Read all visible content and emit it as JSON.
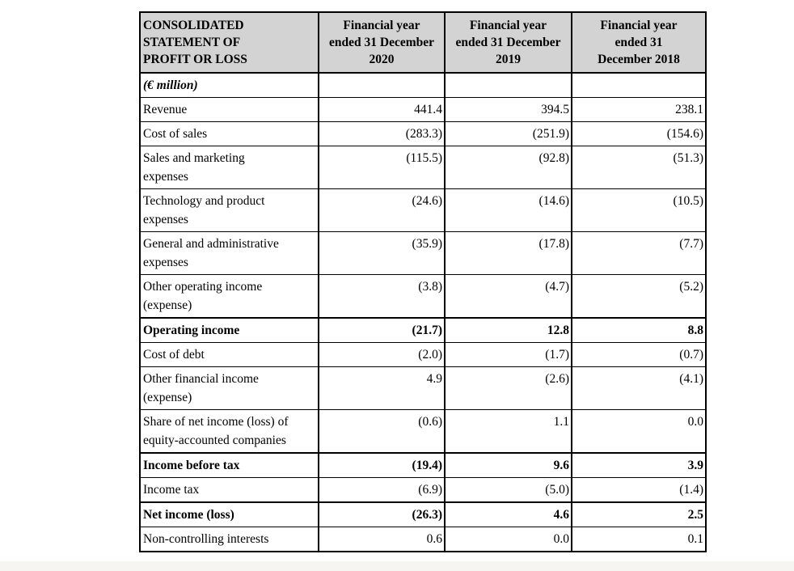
{
  "document": {
    "table": {
      "title": "CONSOLIDATED\nSTATEMENT OF\nPROFIT OR LOSS",
      "unit_label": "(€ million)",
      "columns": [
        "Financial year\nended 31 December\n2020",
        "Financial year\nended 31 December\n2019",
        "Financial year\nended 31\nDecember 2018"
      ],
      "rows": [
        {
          "label": "Revenue",
          "values": [
            "441.4",
            "394.5",
            "238.1"
          ],
          "strong": false
        },
        {
          "label": "Cost of sales",
          "values": [
            "(283.3)",
            "(251.9)",
            "(154.6)"
          ],
          "strong": false
        },
        {
          "label": "Sales and marketing\nexpenses",
          "values": [
            "(115.5)",
            "(92.8)",
            "(51.3)"
          ],
          "strong": false
        },
        {
          "label": "Technology and product\nexpenses",
          "values": [
            "(24.6)",
            "(14.6)",
            "(10.5)"
          ],
          "strong": false
        },
        {
          "label": "General and administrative\nexpenses",
          "values": [
            "(35.9)",
            "(17.8)",
            "(7.7)"
          ],
          "strong": false
        },
        {
          "label": "Other operating income\n(expense)",
          "values": [
            "(3.8)",
            "(4.7)",
            "(5.2)"
          ],
          "strong": false
        },
        {
          "label": "Operating income",
          "values": [
            "(21.7)",
            "12.8",
            "8.8"
          ],
          "strong": true
        },
        {
          "label": "Cost of debt",
          "values": [
            "(2.0)",
            "(1.7)",
            "(0.7)"
          ],
          "strong": false
        },
        {
          "label": "Other financial income\n(expense)",
          "values": [
            "4.9",
            "(2.6)",
            "(4.1)"
          ],
          "strong": false
        },
        {
          "label": "Share of net income (loss) of\nequity-accounted companies",
          "values": [
            "(0.6)",
            "1.1",
            "0.0"
          ],
          "strong": false
        },
        {
          "label": "Income before tax",
          "values": [
            "(19.4)",
            "9.6",
            "3.9"
          ],
          "strong": true
        },
        {
          "label": "Income tax",
          "values": [
            "(6.9)",
            "(5.0)",
            "(1.4)"
          ],
          "strong": false
        },
        {
          "label": "Net income (loss)",
          "values": [
            "(26.3)",
            "4.6",
            "2.5"
          ],
          "strong": true
        },
        {
          "label": "Non-controlling interests",
          "values": [
            "0.6",
            "0.0",
            "0.1"
          ],
          "strong": false
        }
      ]
    },
    "colors": {
      "header_bg": "#d3d3d3",
      "border": "#000000",
      "text": "#000000",
      "page_bg": "#ffffff",
      "bottom_strip": "#f6f5f2"
    }
  }
}
